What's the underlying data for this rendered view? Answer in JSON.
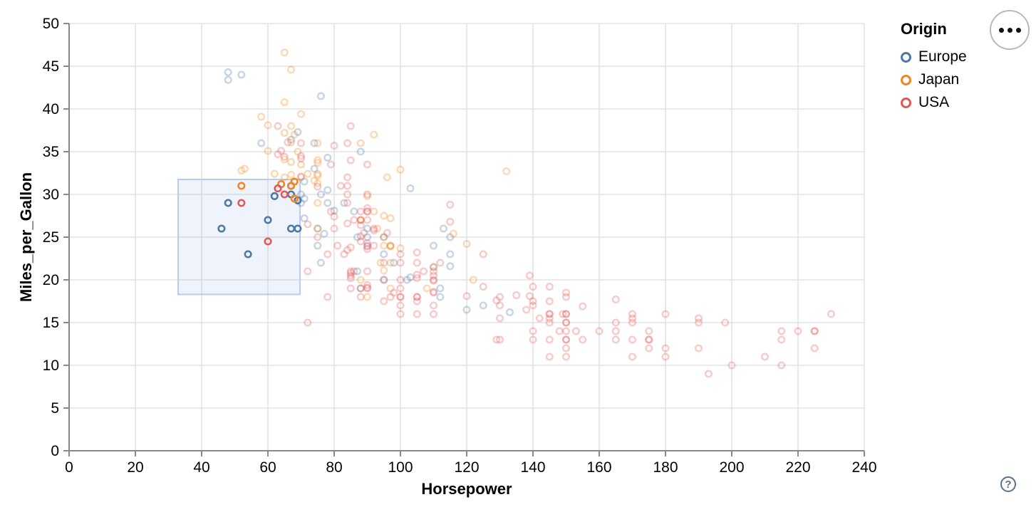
{
  "chart_data": {
    "type": "scatter",
    "title": "",
    "xlabel": "Horsepower",
    "ylabel": "Miles_per_Gallon",
    "xlim": [
      0,
      240
    ],
    "xtick_step": 20,
    "ylim": [
      0,
      50
    ],
    "ytick_step": 5,
    "grid": true,
    "grid_color": "#dddddd",
    "axis_color": "#888888",
    "legend": {
      "title": "Origin",
      "position": "top-right",
      "entries": [
        {
          "label": "Europe",
          "color": "#4c78a8"
        },
        {
          "label": "Japan",
          "color": "#f58518"
        },
        {
          "label": "USA",
          "color": "#e45756"
        }
      ]
    },
    "brush": {
      "hp_range": [
        32.9,
        69.7
      ],
      "mpg_range": [
        18.3,
        31.75
      ],
      "fill": "rgba(120,160,225,0.12)",
      "stroke": "#b7ccf2"
    },
    "unselected_opacity": 0.3,
    "point_note": "third array element 1 = point inside brush (drawn fully opaque)",
    "series": [
      {
        "name": "Europe",
        "color": "#4c78a8",
        "points": [
          [
            87,
            25
          ],
          [
            90,
            24
          ],
          [
            95,
            25
          ],
          [
            113,
            26
          ],
          [
            112,
            18
          ],
          [
            76,
            22
          ],
          [
            87,
            21
          ],
          [
            90,
            26
          ],
          [
            75,
            24
          ],
          [
            95,
            20
          ],
          [
            112,
            19
          ],
          [
            110,
            24
          ],
          [
            70,
            30
          ],
          [
            76,
            30
          ],
          [
            83,
            29
          ],
          [
            75,
            26
          ],
          [
            115,
            23
          ],
          [
            95,
            23
          ],
          [
            98,
            22
          ],
          [
            115,
            25
          ],
          [
            90,
            25
          ],
          [
            70,
            29
          ],
          [
            86,
            28
          ],
          [
            71,
            29.5
          ],
          [
            102,
            20
          ],
          [
            88,
            19
          ],
          [
            120,
            16.5
          ],
          [
            58,
            36
          ],
          [
            78,
            29
          ],
          [
            78,
            30.5
          ],
          [
            110,
            21.5
          ],
          [
            48,
            43.4
          ],
          [
            48,
            44.3
          ],
          [
            52,
            44
          ],
          [
            103,
            20.3
          ],
          [
            125,
            17
          ],
          [
            115,
            21.6
          ],
          [
            133,
            16.2
          ],
          [
            71,
            31.5
          ],
          [
            77,
            25.4
          ],
          [
            71,
            27.2
          ],
          [
            69,
            37.3
          ],
          [
            76,
            41.5
          ],
          [
            67,
            36.4
          ],
          [
            88,
            35
          ],
          [
            78,
            34.3
          ],
          [
            74,
            33
          ],
          [
            80,
            28.1
          ],
          [
            103,
            30.7
          ],
          [
            74,
            36
          ],
          [
            46,
            26,
            1
          ],
          [
            48,
            29,
            1
          ],
          [
            54,
            23,
            1
          ],
          [
            60,
            27,
            1
          ],
          [
            62,
            29.8,
            1
          ],
          [
            67,
            26,
            1
          ],
          [
            69,
            26,
            1
          ],
          [
            67,
            31,
            1
          ],
          [
            67,
            30,
            1
          ],
          [
            69,
            29.3,
            1
          ]
        ]
      },
      {
        "name": "Japan",
        "color": "#f58518",
        "points": [
          [
            95,
            24
          ],
          [
            88,
            27
          ],
          [
            88,
            27
          ],
          [
            95,
            25
          ],
          [
            97,
            19
          ],
          [
            88,
            20
          ],
          [
            94,
            22
          ],
          [
            90,
            18
          ],
          [
            122,
            20
          ],
          [
            65,
            32
          ],
          [
            97,
            24
          ],
          [
            93,
            26
          ],
          [
            53,
            33
          ],
          [
            70,
            32
          ],
          [
            75,
            26
          ],
          [
            75,
            29
          ],
          [
            108,
            19
          ],
          [
            70,
            33.5
          ],
          [
            97,
            27.2
          ],
          [
            95,
            27.5
          ],
          [
            95,
            21.1
          ],
          [
            97,
            23.9
          ],
          [
            52,
            32.8
          ],
          [
            65,
            34.1
          ],
          [
            70,
            39.4
          ],
          [
            67,
            36.1
          ],
          [
            60,
            38.1
          ],
          [
            65,
            37.2
          ],
          [
            90,
            29.8
          ],
          [
            75,
            31.3
          ],
          [
            92,
            37
          ],
          [
            75,
            32.2
          ],
          [
            65,
            46.6
          ],
          [
            65,
            40.8
          ],
          [
            67,
            44.6
          ],
          [
            67,
            33.8
          ],
          [
            132,
            32.7
          ],
          [
            100,
            23.7
          ],
          [
            72,
            32.4
          ],
          [
            58,
            39.1
          ],
          [
            60,
            35.1
          ],
          [
            67,
            32.3
          ],
          [
            62,
            32.4
          ],
          [
            75,
            33.7
          ],
          [
            75,
            32.4
          ],
          [
            100,
            32.9
          ],
          [
            74,
            31.6
          ],
          [
            116,
            25.4
          ],
          [
            120,
            24.2
          ],
          [
            96,
            32
          ],
          [
            88,
            36
          ],
          [
            75,
            36
          ],
          [
            75,
            34
          ],
          [
            67,
            38
          ],
          [
            68,
            37
          ],
          [
            69,
            35
          ],
          [
            110,
            21.5
          ],
          [
            97,
            22
          ],
          [
            92,
            28
          ],
          [
            97,
            24
          ],
          [
            52,
            31,
            1
          ],
          [
            64,
            31.2,
            1
          ],
          [
            67,
            31,
            1
          ],
          [
            68,
            31.5,
            1
          ],
          [
            68,
            29.5,
            1
          ]
        ]
      },
      {
        "name": "USA",
        "color": "#e45756",
        "points": [
          [
            130,
            18
          ],
          [
            165,
            15
          ],
          [
            150,
            18
          ],
          [
            150,
            16
          ],
          [
            140,
            17
          ],
          [
            198,
            15
          ],
          [
            220,
            14
          ],
          [
            215,
            14
          ],
          [
            225,
            14
          ],
          [
            190,
            15
          ],
          [
            170,
            15
          ],
          [
            160,
            14
          ],
          [
            150,
            15
          ],
          [
            225,
            14
          ],
          [
            95,
            22
          ],
          [
            97,
            18
          ],
          [
            85,
            21
          ],
          [
            90,
            21
          ],
          [
            215,
            10
          ],
          [
            200,
            10
          ],
          [
            210,
            11
          ],
          [
            193,
            9
          ],
          [
            90,
            28
          ],
          [
            90,
            19
          ],
          [
            105,
            16
          ],
          [
            100,
            17
          ],
          [
            88,
            19
          ],
          [
            100,
            18
          ],
          [
            165,
            14
          ],
          [
            175,
            14
          ],
          [
            153,
            14
          ],
          [
            150,
            14
          ],
          [
            180,
            12
          ],
          [
            170,
            11
          ],
          [
            175,
            13
          ],
          [
            190,
            12
          ],
          [
            155,
            13
          ],
          [
            150,
            13
          ],
          [
            140,
            13
          ],
          [
            86,
            21
          ],
          [
            165,
            13
          ],
          [
            150,
            15
          ],
          [
            215,
            13
          ],
          [
            225,
            12
          ],
          [
            175,
            13
          ],
          [
            105,
            18
          ],
          [
            100,
            18
          ],
          [
            88,
            18
          ],
          [
            100,
            23
          ],
          [
            150,
            11
          ],
          [
            175,
            12
          ],
          [
            170,
            13
          ],
          [
            150,
            12
          ],
          [
            72,
            21
          ],
          [
            85,
            19
          ],
          [
            107,
            21
          ],
          [
            145,
            11
          ],
          [
            230,
            16
          ],
          [
            180,
            11
          ],
          [
            95,
            20
          ],
          [
            110,
            16
          ],
          [
            105,
            18
          ],
          [
            145,
            16
          ],
          [
            148,
            14
          ],
          [
            140,
            14
          ],
          [
            100,
            16
          ],
          [
            80,
            26
          ],
          [
            75,
            25
          ],
          [
            110,
            21
          ],
          [
            110,
            20
          ],
          [
            129,
            13
          ],
          [
            83,
            23
          ],
          [
            100,
            20
          ],
          [
            78,
            23
          ],
          [
            72,
            15
          ],
          [
            170,
            16
          ],
          [
            145,
            15
          ],
          [
            150,
            16
          ],
          [
            110,
            17
          ],
          [
            145,
            16
          ],
          [
            100,
            22
          ],
          [
            105,
            22
          ],
          [
            81,
            24
          ],
          [
            78,
            18
          ],
          [
            110,
            18.5
          ],
          [
            95,
            17.5
          ],
          [
            72,
            26.5
          ],
          [
            150,
            13
          ],
          [
            145,
            13
          ],
          [
            130,
            13
          ],
          [
            96,
            25.5
          ],
          [
            145,
            17.5
          ],
          [
            170,
            15.5
          ],
          [
            89,
            25.5
          ],
          [
            145,
            15.5
          ],
          [
            130,
            15.5
          ],
          [
            105,
            17.5
          ],
          [
            100,
            19
          ],
          [
            98,
            18.5
          ],
          [
            180,
            16
          ],
          [
            190,
            15.5
          ],
          [
            149,
            16
          ],
          [
            88,
            24.5
          ],
          [
            79,
            33.5
          ],
          [
            90,
            30
          ],
          [
            85,
            20.5
          ],
          [
            85,
            20.2
          ],
          [
            88,
            25.1
          ],
          [
            110,
            20.5
          ],
          [
            90,
            19.4
          ],
          [
            105,
            20.6
          ],
          [
            85,
            20.8
          ],
          [
            110,
            18.6
          ],
          [
            120,
            18.1
          ],
          [
            145,
            19.2
          ],
          [
            165,
            17.7
          ],
          [
            139,
            18.1
          ],
          [
            140,
            17.5
          ],
          [
            75,
            30.9
          ],
          [
            105,
            23.2
          ],
          [
            85,
            23.8
          ],
          [
            139,
            20.5
          ],
          [
            105,
            20.2
          ],
          [
            110,
            19.9
          ],
          [
            140,
            19.2
          ],
          [
            129,
            17.6
          ],
          [
            138,
            16.5
          ],
          [
            135,
            18.2
          ],
          [
            155,
            16.9
          ],
          [
            142,
            15.5
          ],
          [
            125,
            19.2
          ],
          [
            150,
            18.5
          ],
          [
            130,
            17
          ],
          [
            80,
            35.7
          ],
          [
            80,
            27.4
          ],
          [
            125,
            23
          ],
          [
            90,
            23.9
          ],
          [
            70,
            34.2
          ],
          [
            70,
            34.5
          ],
          [
            90,
            28.4
          ],
          [
            115,
            28.8
          ],
          [
            115,
            26.8
          ],
          [
            90,
            33.5
          ],
          [
            70,
            32.1
          ],
          [
            90,
            28
          ],
          [
            88,
            26.4
          ],
          [
            90,
            24.3
          ],
          [
            90,
            19.1
          ],
          [
            90,
            23.6
          ],
          [
            84,
            30
          ],
          [
            84,
            26.6
          ],
          [
            92,
            25.8
          ],
          [
            84,
            23.5
          ],
          [
            64,
            35.1
          ],
          [
            63,
            34.7
          ],
          [
            65,
            34.4
          ],
          [
            88,
            28
          ],
          [
            88,
            27
          ],
          [
            85,
            34
          ],
          [
            84,
            31
          ],
          [
            84,
            29
          ],
          [
            90,
            27
          ],
          [
            92,
            24
          ],
          [
            70,
            36
          ],
          [
            85,
            38
          ],
          [
            92,
            26
          ],
          [
            112,
            22
          ],
          [
            84,
            36
          ],
          [
            86,
            27
          ],
          [
            84,
            32
          ],
          [
            79,
            28
          ],
          [
            82,
            31
          ],
          [
            63,
            38
          ],
          [
            66,
            36.1
          ],
          [
            52,
            29,
            1
          ],
          [
            63,
            30.7,
            1
          ],
          [
            65,
            30,
            1
          ],
          [
            60,
            24.5,
            1
          ]
        ]
      }
    ]
  },
  "controls": {
    "menu_button": {
      "icon": "ellipsis"
    },
    "help_button": {
      "label": "?"
    }
  }
}
